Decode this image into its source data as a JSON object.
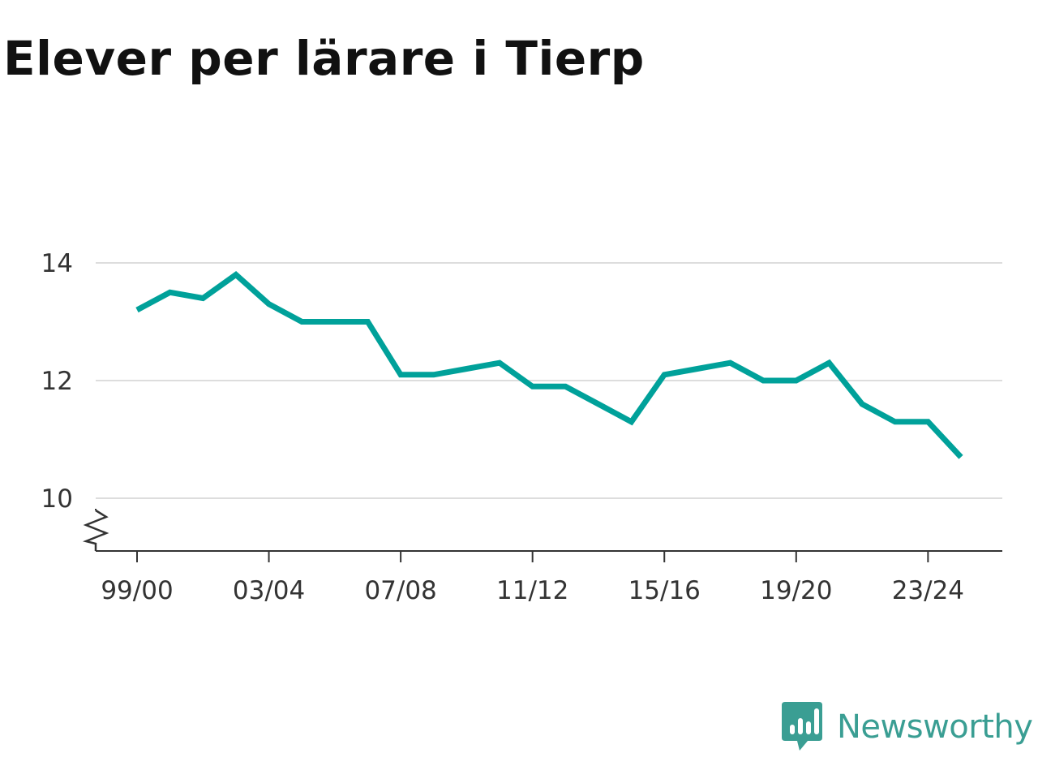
{
  "title": "Elever per lärare i Tierp",
  "brand": {
    "name": "Newsworthy",
    "logo_icon": "bar-chart-speech-bubble-icon",
    "color": "#3a9e93"
  },
  "chart_data": {
    "type": "line",
    "title": "Elever per lärare i Tierp",
    "xlabel": "",
    "ylabel": "",
    "line_color": "#00a19a",
    "grid": true,
    "y_axis_break": true,
    "ylim": [
      9.1,
      14.2
    ],
    "yticks": [
      10,
      12,
      14
    ],
    "xticks": [
      "99/00",
      "03/04",
      "07/08",
      "11/12",
      "15/16",
      "19/20",
      "23/24"
    ],
    "x": [
      "99/00",
      "00/01",
      "01/02",
      "02/03",
      "03/04",
      "04/05",
      "05/06",
      "06/07",
      "07/08",
      "08/09",
      "09/10",
      "10/11",
      "11/12",
      "12/13",
      "13/14",
      "14/15",
      "15/16",
      "16/17",
      "17/18",
      "18/19",
      "19/20",
      "20/21",
      "21/22",
      "22/23",
      "23/24",
      "24/25"
    ],
    "series": [
      {
        "values": [
          13.2,
          13.5,
          13.4,
          13.8,
          13.3,
          13.0,
          13.0,
          13.0,
          12.1,
          12.1,
          12.2,
          12.3,
          11.9,
          11.9,
          11.6,
          11.3,
          12.1,
          12.2,
          12.3,
          12.0,
          12.0,
          12.3,
          11.6,
          11.3,
          11.3,
          10.7
        ]
      }
    ]
  }
}
